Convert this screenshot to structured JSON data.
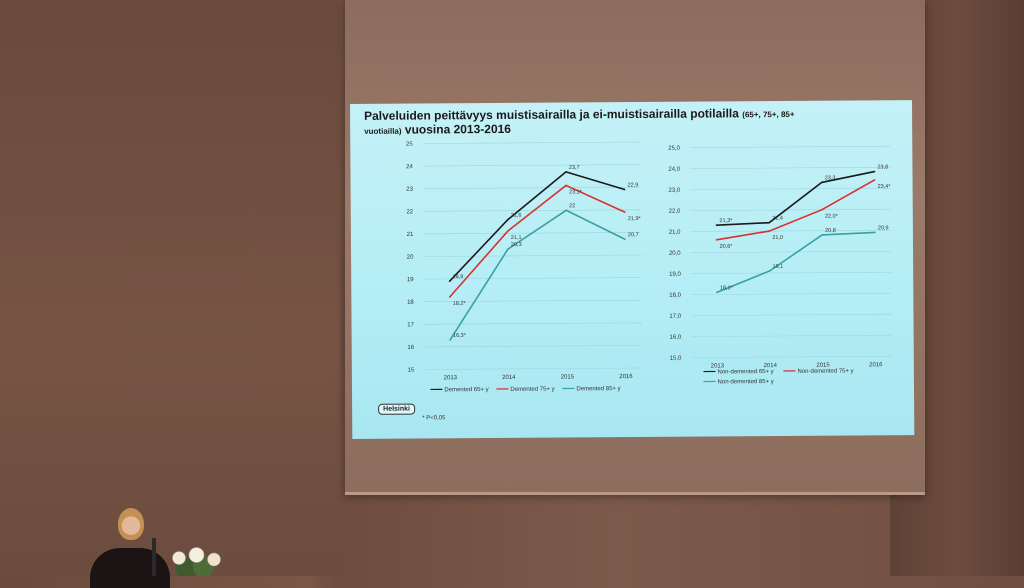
{
  "slide": {
    "title_line1": "Palveluiden peittävyys muistisairailla ja ei-muistisairailla potilailla",
    "title_suffix": "(65+, 75+, 85+",
    "title_line2_small": "vuotiailla)",
    "title_line2": "vuosina 2013-2016",
    "footnote": "* P<0,05",
    "logo_text": "Helsinki"
  },
  "chart_data": [
    {
      "type": "line",
      "x": [
        "2013",
        "2014",
        "2015",
        "2016"
      ],
      "ylim": [
        15,
        25
      ],
      "yticks": [
        "15",
        "16",
        "17",
        "18",
        "19",
        "20",
        "21",
        "22",
        "23",
        "24",
        "25"
      ],
      "grid": true,
      "legend": "bottom",
      "series": [
        {
          "name": "Demented 65+ y",
          "color": "#1a1a1a",
          "values": [
            18.9,
            21.6,
            23.7,
            22.9
          ],
          "labels": [
            "18,9",
            "21,6",
            "23,7",
            "22,9"
          ]
        },
        {
          "name": "Demented 75+ y",
          "color": "#d8322a",
          "values": [
            18.2,
            21.1,
            23.1,
            21.9
          ],
          "labels": [
            "18,2*",
            "21,1",
            "23,1*",
            "21,9*"
          ]
        },
        {
          "name": "Demented 85+ y",
          "color": "#3aa0a0",
          "values": [
            16.3,
            20.3,
            22.0,
            20.7
          ],
          "labels": [
            "16,3*",
            "20,3",
            "22",
            "20,7"
          ]
        }
      ]
    },
    {
      "type": "line",
      "x": [
        "2013",
        "2014",
        "2015",
        "2016"
      ],
      "ylim": [
        15,
        25
      ],
      "yticks": [
        "15,0",
        "16,0",
        "17,0",
        "18,0",
        "19,0",
        "20,0",
        "21,0",
        "22,0",
        "23,0",
        "24,0",
        "25,0"
      ],
      "grid": true,
      "legend": "bottom",
      "series": [
        {
          "name": "Non-demented 65+ y",
          "color": "#1a1a1a",
          "values": [
            21.3,
            21.4,
            23.3,
            23.8
          ],
          "labels": [
            "21,3*",
            "21,4",
            "23,3",
            "23,8"
          ]
        },
        {
          "name": "Non-demented 75+ y",
          "color": "#d8322a",
          "values": [
            20.6,
            21.0,
            22.0,
            23.4
          ],
          "labels": [
            "20,6*",
            "21,0",
            "22,0*",
            "23,4*"
          ]
        },
        {
          "name": "Non-demented 85+ y",
          "color": "#3aa0a0",
          "values": [
            18.1,
            19.1,
            20.8,
            20.9
          ],
          "labels": [
            "18,1*",
            "19,1",
            "20,8",
            "20,9"
          ]
        }
      ]
    }
  ]
}
